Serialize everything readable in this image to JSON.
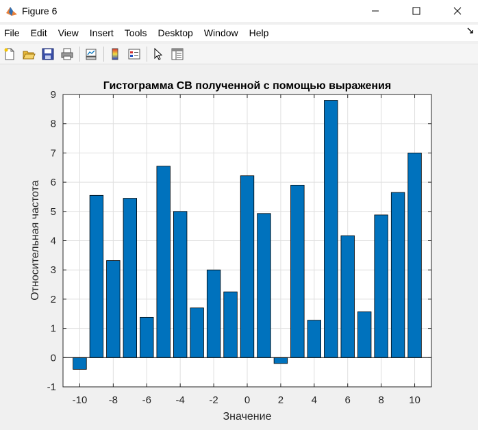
{
  "window": {
    "title": "Figure 6"
  },
  "menu": {
    "items": [
      "File",
      "Edit",
      "View",
      "Insert",
      "Tools",
      "Desktop",
      "Window",
      "Help"
    ]
  },
  "toolbar": {
    "icons": [
      "new-figure-icon",
      "open-file-icon",
      "save-icon",
      "print-icon",
      "link-plot-icon",
      "colorbar-icon",
      "legend-icon",
      "edit-plot-arrow-icon",
      "property-inspector-icon"
    ]
  },
  "colors": {
    "bar_fill": "#0072BD",
    "bar_edge": "#000000"
  },
  "chart_data": {
    "type": "bar",
    "title": "Гистограмма СВ полученной с помощью выражения",
    "xlabel": "Значение",
    "ylabel": "Относительная частота",
    "x": [
      -10,
      -9,
      -8,
      -7,
      -6,
      -5,
      -4,
      -3,
      -2,
      -1,
      0,
      1,
      2,
      3,
      4,
      5,
      6,
      7,
      8,
      9,
      10
    ],
    "values": [
      -0.4,
      5.55,
      3.32,
      5.45,
      1.38,
      6.55,
      5.0,
      1.7,
      3.0,
      2.25,
      6.22,
      4.93,
      -0.2,
      5.9,
      1.28,
      8.8,
      4.17,
      1.57,
      4.88,
      5.65,
      7.0
    ],
    "xlim": [
      -11,
      11
    ],
    "ylim": [
      -1,
      9
    ],
    "xticks": [
      "-10",
      "-8",
      "-6",
      "-4",
      "-2",
      "0",
      "2",
      "4",
      "6",
      "8",
      "10"
    ],
    "yticks": [
      "-1",
      "0",
      "1",
      "2",
      "3",
      "4",
      "5",
      "6",
      "7",
      "8",
      "9"
    ],
    "grid": true
  }
}
